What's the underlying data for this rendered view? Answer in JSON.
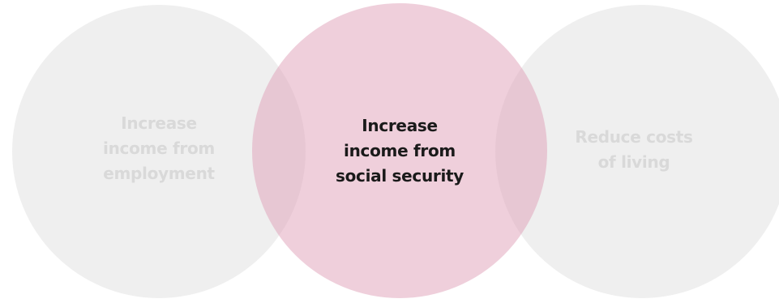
{
  "diagram": {
    "circles": [
      {
        "id": "employment",
        "lines": [
          "Increase",
          "income from",
          "employment"
        ],
        "color": "#e2e2e2",
        "highlighted": false
      },
      {
        "id": "social_security",
        "lines": [
          "Increase",
          "income from",
          "social security"
        ],
        "color": "#e0a0b8",
        "highlighted": true
      },
      {
        "id": "living_costs",
        "lines": [
          "Reduce costs",
          "of living"
        ],
        "color": "#e2e2e2",
        "highlighted": false
      }
    ]
  }
}
